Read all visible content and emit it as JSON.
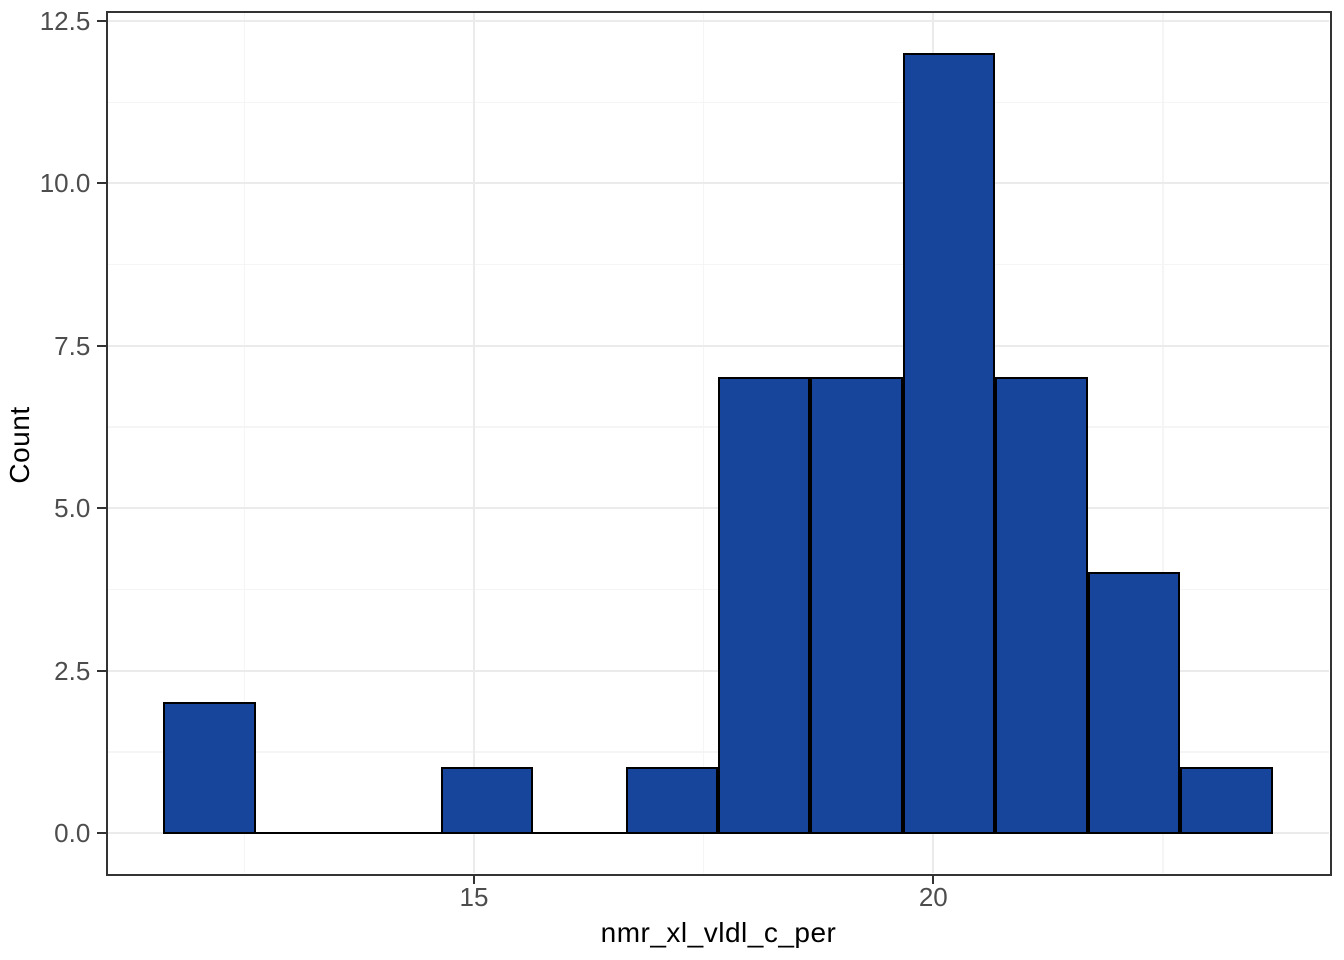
{
  "chart_data": {
    "type": "histogram",
    "title": "",
    "xlabel": "nmr_xl_vldl_c_per",
    "ylabel": "Count",
    "bin_start": 11.62,
    "bin_width": 1.006,
    "counts": [
      2,
      0,
      0,
      1,
      0,
      1,
      7,
      7,
      12,
      7,
      4,
      1
    ],
    "total_count": 42,
    "x_domain": [
      11.02,
      24.31
    ],
    "y_domain": [
      -0.62,
      12.62
    ],
    "x_ticks": [
      {
        "value": 15,
        "label": "15"
      },
      {
        "value": 20,
        "label": "20"
      }
    ],
    "x_minor_ticks": [
      12.5,
      17.5,
      22.5
    ],
    "y_ticks": [
      {
        "value": 0,
        "label": "0.0"
      },
      {
        "value": 2.5,
        "label": "2.5"
      },
      {
        "value": 5,
        "label": "5.0"
      },
      {
        "value": 7.5,
        "label": "7.5"
      },
      {
        "value": 10,
        "label": "10.0"
      },
      {
        "value": 12.5,
        "label": "12.5"
      }
    ],
    "y_minor_ticks": [
      1.25,
      3.75,
      6.25,
      8.75,
      11.25
    ],
    "legend": "none",
    "grid": "on",
    "colors": {
      "bar_fill": "#17459C",
      "bar_stroke": "#000000",
      "panel_border": "#333333",
      "tick_mark": "#333333",
      "grid_major": "#EBEBEB",
      "grid_minor": "#F5F5F5",
      "tick_label": "#4D4D4D",
      "axis_title": "#000000",
      "background": "#FFFFFF"
    }
  }
}
